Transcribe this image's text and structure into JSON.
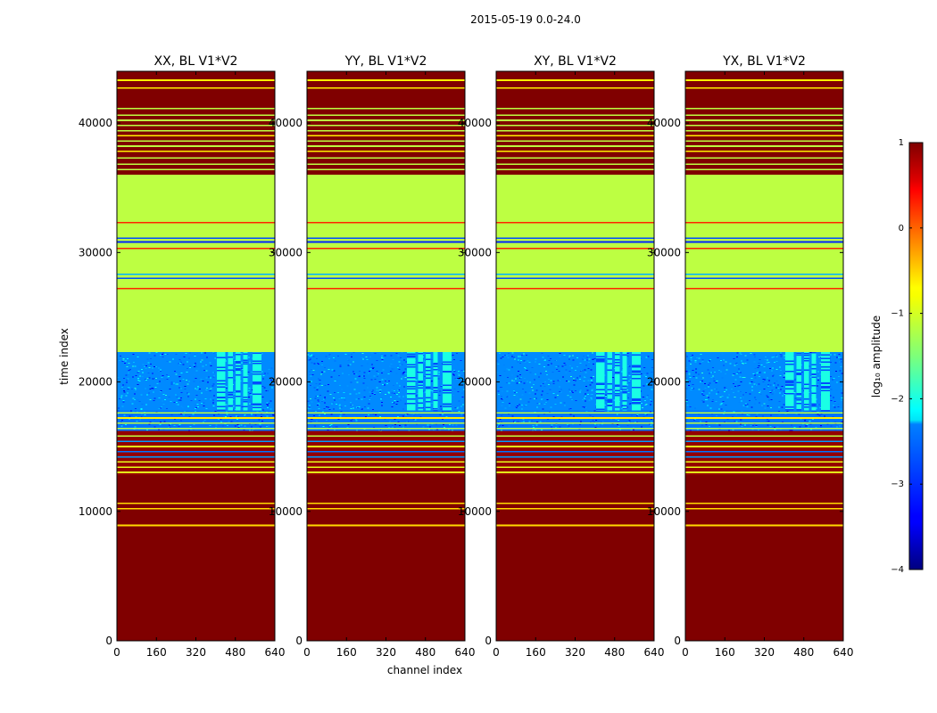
{
  "figure": {
    "suptitle": "2015-05-19 0.0-24.0"
  },
  "chart_data": {
    "type": "heatmap",
    "xlabel": "channel index",
    "ylabel": "time index",
    "xlim": [
      0,
      640
    ],
    "ylim": [
      0,
      44000
    ],
    "x_ticks": [
      0,
      160,
      320,
      480,
      640
    ],
    "y_ticks": [
      0,
      10000,
      20000,
      30000,
      40000
    ],
    "panels": [
      {
        "title": "XX, BL V1*V2"
      },
      {
        "title": "YY, BL V1*V2"
      },
      {
        "title": "XY, BL V1*V2"
      },
      {
        "title": "YX, BL V1*V2"
      }
    ],
    "row_bands": [
      {
        "t0": 0,
        "t1": 12800,
        "level": 1
      },
      {
        "t0": 12800,
        "t1": 16200,
        "level": 0.9,
        "striped": true
      },
      {
        "t0": 16200,
        "t1": 17800,
        "level": -2.8,
        "noise": true
      },
      {
        "t0": 17800,
        "t1": 22300,
        "level": -2.7,
        "noise": true
      },
      {
        "t0": 22300,
        "t1": 36000,
        "level": -1.2
      },
      {
        "t0": 36000,
        "t1": 44000,
        "level": 1,
        "striped": true
      }
    ],
    "horizontal_lines": [
      {
        "t": 8900,
        "level": -0.7
      },
      {
        "t": 10200,
        "level": -0.7
      },
      {
        "t": 10600,
        "level": -0.7
      },
      {
        "t": 13000,
        "level": -1.0
      },
      {
        "t": 13400,
        "level": -1.0
      },
      {
        "t": 13800,
        "level": -1.0
      },
      {
        "t": 14200,
        "level": -2.6
      },
      {
        "t": 14600,
        "level": -2.8
      },
      {
        "t": 15000,
        "level": -1.0
      },
      {
        "t": 15400,
        "level": -2.6
      },
      {
        "t": 15800,
        "level": -1.2
      },
      {
        "t": 16400,
        "level": -1.2
      },
      {
        "t": 16800,
        "level": -1.2
      },
      {
        "t": 17200,
        "level": -0.8
      },
      {
        "t": 17600,
        "level": -1.2
      },
      {
        "t": 27200,
        "level": 0.2
      },
      {
        "t": 28000,
        "level": -3.0
      },
      {
        "t": 28300,
        "level": -2.5
      },
      {
        "t": 30300,
        "level": 0.2
      },
      {
        "t": 30800,
        "level": -3.2
      },
      {
        "t": 31100,
        "level": -3.0
      },
      {
        "t": 32300,
        "level": 0.2
      },
      {
        "t": 36400,
        "level": -1.2
      },
      {
        "t": 36800,
        "level": -1.2
      },
      {
        "t": 37300,
        "level": -1.2
      },
      {
        "t": 37800,
        "level": -0.8
      },
      {
        "t": 38200,
        "level": -1.2
      },
      {
        "t": 38600,
        "level": -1.2
      },
      {
        "t": 39000,
        "level": -0.8
      },
      {
        "t": 39400,
        "level": -1.2
      },
      {
        "t": 39800,
        "level": -1.2
      },
      {
        "t": 40200,
        "level": -1.2
      },
      {
        "t": 40600,
        "level": -1.2
      },
      {
        "t": 41100,
        "level": -1.2
      },
      {
        "t": 42700,
        "level": -0.8
      },
      {
        "t": 43300,
        "level": -0.8
      }
    ],
    "signal_columns": {
      "t0": 17800,
      "t1": 22300,
      "level": -2.0,
      "channels": [
        [
          405,
          440
        ],
        [
          450,
          470
        ],
        [
          480,
          500
        ],
        [
          512,
          530
        ],
        [
          550,
          585
        ]
      ]
    },
    "colorbar": {
      "label": "log₁₀ amplitude",
      "vmin": -4,
      "vmax": 1,
      "ticks": [
        1,
        0,
        -1,
        -2,
        -3,
        -4
      ]
    }
  }
}
